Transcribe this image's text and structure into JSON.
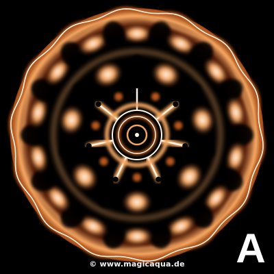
{
  "image": {
    "subject": "cymatic water-sound pattern",
    "colors": {
      "background": "#000000",
      "glow_core": "#fff6ea",
      "glow_mid": "#f2a460",
      "glow_outer": "#b8561c",
      "glow_deep": "#5a200a"
    },
    "symmetry_order": 7
  },
  "caption": {
    "copyright_text": "© www.magicaqua.de"
  },
  "corner_label": {
    "text": "A"
  }
}
